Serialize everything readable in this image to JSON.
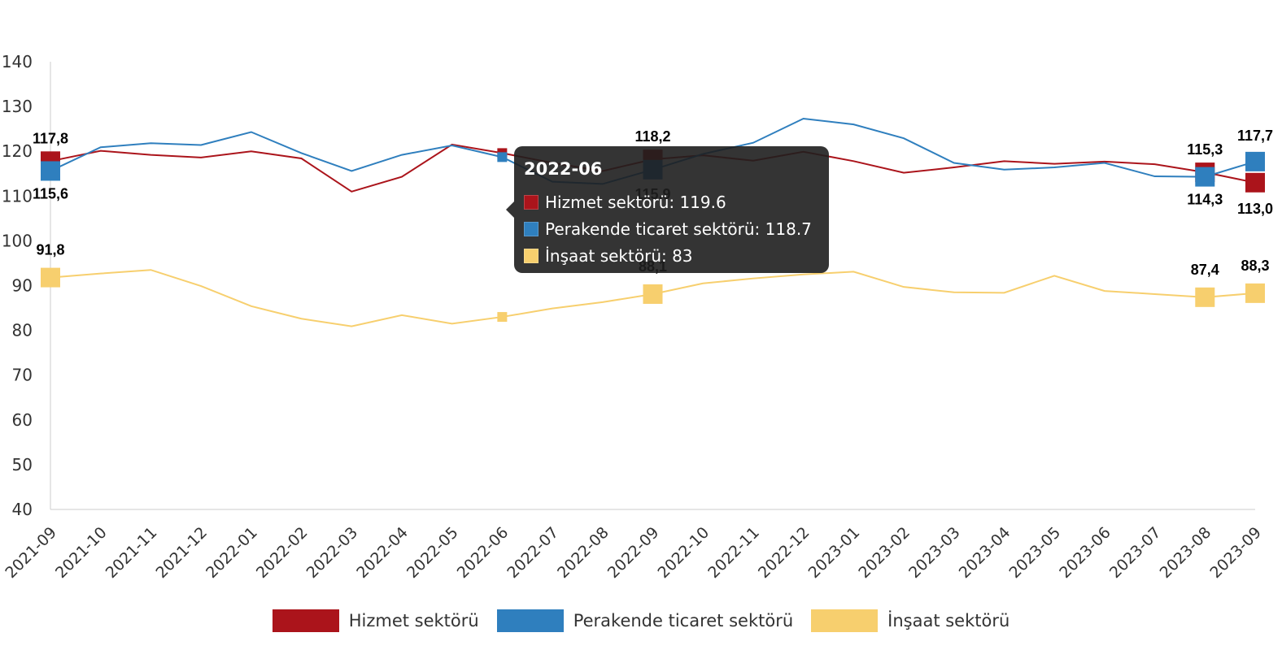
{
  "chart_data": {
    "type": "line",
    "title": "",
    "xlabel": "",
    "ylabel": "",
    "ylim": [
      40,
      140
    ],
    "yticks": [
      40,
      50,
      60,
      70,
      80,
      90,
      100,
      110,
      120,
      130,
      140
    ],
    "categories": [
      "2021-09",
      "2021-10",
      "2021-11",
      "2021-12",
      "2022-01",
      "2022-02",
      "2022-03",
      "2022-04",
      "2022-05",
      "2022-06",
      "2022-07",
      "2022-08",
      "2022-09",
      "2022-10",
      "2022-11",
      "2022-12",
      "2023-01",
      "2023-02",
      "2023-03",
      "2023-04",
      "2023-05",
      "2023-06",
      "2023-07",
      "2023-08",
      "2023-09"
    ],
    "legend_position": "bottom",
    "series": [
      {
        "name": "Hizmet sektörü",
        "color": "#ab141b",
        "values": [
          117.8,
          120.1,
          119.2,
          118.6,
          120.0,
          118.4,
          111.0,
          114.3,
          121.5,
          119.6,
          117.4,
          115.6,
          118.2,
          119.1,
          117.9,
          119.9,
          117.8,
          115.2,
          116.4,
          117.8,
          117.2,
          117.7,
          117.1,
          115.3,
          113.0
        ],
        "labels": {
          "0": "117,8",
          "12": "118,2",
          "23": "115,3",
          "24": "113,0"
        }
      },
      {
        "name": "Perakende ticaret sektörü",
        "color": "#2f7fbe",
        "values": [
          115.6,
          120.9,
          121.8,
          121.4,
          124.3,
          119.6,
          115.6,
          119.2,
          121.3,
          118.7,
          113.2,
          112.7,
          115.9,
          119.4,
          121.9,
          127.3,
          126.0,
          122.9,
          117.4,
          115.9,
          116.4,
          117.4,
          114.4,
          114.3,
          117.7
        ],
        "labels": {
          "0": "115,6",
          "12": "115,9",
          "23": "114,3",
          "24": "117,7"
        }
      },
      {
        "name": "İnşaat sektörü",
        "color": "#f7cf6e",
        "values": [
          91.8,
          92.7,
          93.5,
          89.9,
          85.4,
          82.6,
          80.9,
          83.4,
          81.5,
          83.0,
          84.9,
          86.3,
          88.1,
          90.5,
          91.6,
          92.5,
          93.1,
          89.7,
          88.5,
          88.4,
          92.2,
          88.8,
          88.1,
          87.4,
          88.3
        ],
        "labels": {
          "0": "91,8",
          "12": "88,1",
          "23": "87,4",
          "24": "88,3"
        }
      }
    ],
    "tooltip": {
      "title": "2022-06",
      "rows": [
        {
          "text": "Hizmet sektörü: 119.6",
          "color": "#ab141b"
        },
        {
          "text": "Perakende ticaret sektörü: 118.7",
          "color": "#2f7fbe"
        },
        {
          "text": "İnşaat sektörü: 83",
          "color": "#f7cf6e"
        }
      ]
    }
  }
}
